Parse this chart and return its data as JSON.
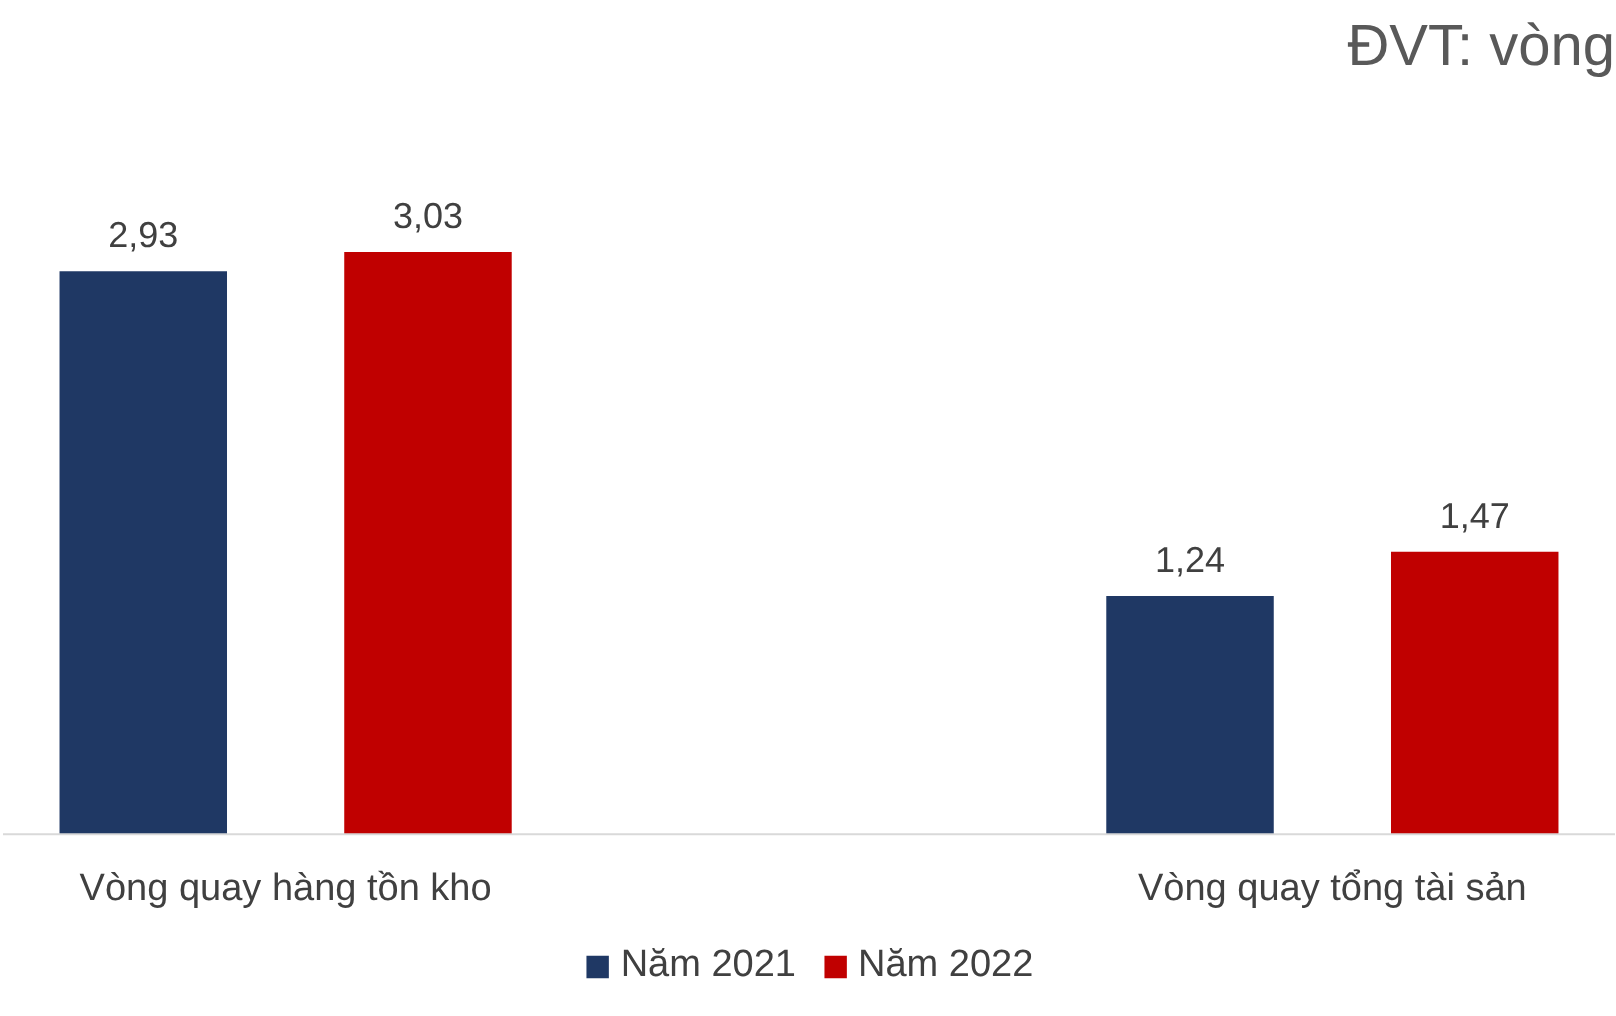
{
  "chart_data": {
    "type": "bar",
    "title": "ĐVT: vòng",
    "categories": [
      "Vòng quay hàng tồn kho",
      "Vòng quay tổng tài sản"
    ],
    "series": [
      {
        "name": "Năm 2021",
        "color": "#1f3864",
        "values": [
          2.93,
          1.24
        ],
        "value_labels": [
          "2,93",
          "1,24"
        ]
      },
      {
        "name": "Năm 2022",
        "color": "#c00000",
        "values": [
          3.03,
          1.47
        ],
        "value_labels": [
          "3,03",
          "1,47"
        ]
      }
    ],
    "grid": false,
    "legend": "bottom",
    "data_labels": true
  }
}
